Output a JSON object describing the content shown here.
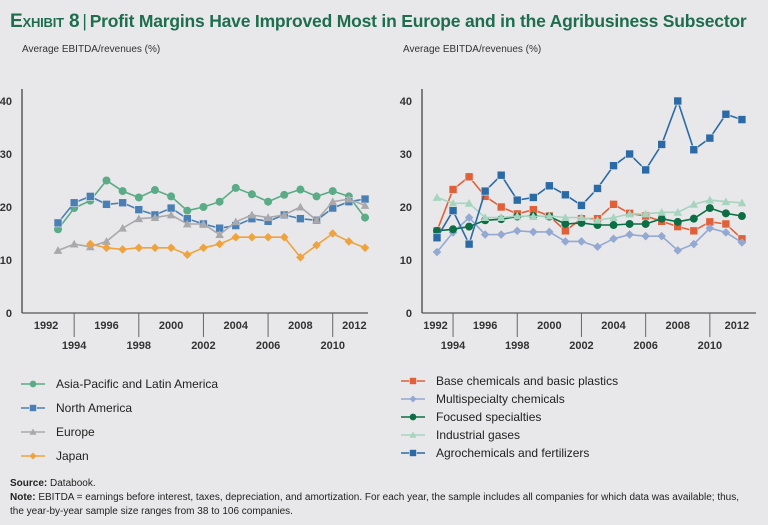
{
  "title": {
    "exhibit": "Exhibit 8",
    "separator": "|",
    "text": "Profit Margins Have Improved Most in Europe and in the Agribusiness Subsector"
  },
  "chart_data": [
    {
      "type": "line",
      "title": "",
      "ylabel": "Average EBITDA/revenues (%)",
      "xlabel": "",
      "ylim": [
        0,
        40
      ],
      "yticks": [
        "0",
        "10",
        "20",
        "30",
        "40"
      ],
      "x": [
        1993,
        1994,
        1995,
        1996,
        1997,
        1998,
        1999,
        2000,
        2001,
        2002,
        2003,
        2004,
        2005,
        2006,
        2007,
        2008,
        2009,
        2010,
        2011,
        2012
      ],
      "xtick_labels_top": [
        "1992",
        "1996",
        "2000",
        "2004",
        "2008",
        "2012"
      ],
      "xtick_labels_bottom": [
        "1994",
        "1998",
        "2002",
        "2006",
        "2010"
      ],
      "legend_position": "below",
      "series": [
        {
          "name": "Asia-Pacific and Latin America",
          "color": "#5aab86",
          "marker": "circle",
          "values": [
            15.8,
            19.8,
            21.2,
            25,
            23,
            21.8,
            23.2,
            22,
            19.3,
            20,
            21,
            23.6,
            22.4,
            21,
            22.3,
            23.3,
            22,
            23,
            22,
            18
          ]
        },
        {
          "name": "North America",
          "color": "#4a7fb5",
          "marker": "square",
          "values": [
            17,
            20.8,
            22,
            20.5,
            20.8,
            19.5,
            18.5,
            19.8,
            17.8,
            16.8,
            16,
            16.5,
            17.8,
            17.3,
            18.5,
            17.8,
            17.5,
            19.8,
            21,
            21.5
          ]
        },
        {
          "name": "Europe",
          "color": "#a9a9ab",
          "marker": "triangle",
          "values": [
            11.8,
            13,
            12.5,
            13.5,
            16,
            17.8,
            18,
            18.5,
            16.8,
            16.8,
            14.8,
            17.2,
            18.5,
            18,
            18.5,
            20,
            17.5,
            21,
            21.5,
            20.3
          ]
        },
        {
          "name": "Japan",
          "color": "#f0a23c",
          "marker": "diamond",
          "values": [
            null,
            null,
            13,
            12.3,
            12,
            12.3,
            12.3,
            12.3,
            11,
            12.3,
            13,
            14.3,
            14.3,
            14.3,
            14.3,
            10.5,
            12.8,
            15,
            13.5,
            12.3
          ]
        }
      ]
    },
    {
      "type": "line",
      "title": "",
      "ylabel": "Average EBITDA/revenues (%)",
      "xlabel": "",
      "ylim": [
        0,
        40
      ],
      "yticks": [
        "0",
        "10",
        "20",
        "30",
        "40"
      ],
      "x": [
        1993,
        1994,
        1995,
        1996,
        1997,
        1998,
        1999,
        2000,
        2001,
        2002,
        2003,
        2004,
        2005,
        2006,
        2007,
        2008,
        2009,
        2010,
        2011,
        2012
      ],
      "xtick_labels_top": [
        "1992",
        "1996",
        "2000",
        "2004",
        "2008",
        "2012"
      ],
      "xtick_labels_bottom": [
        "1994",
        "1998",
        "2002",
        "2006",
        "2010"
      ],
      "legend_position": "below",
      "series": [
        {
          "name": "Base chemicals and basic plastics",
          "color": "#e0603a",
          "marker": "square",
          "values": [
            15.5,
            23.3,
            25.7,
            22,
            20,
            18.7,
            19.5,
            18.3,
            15.5,
            17.8,
            17.8,
            20.5,
            18.8,
            18.3,
            17.3,
            16.3,
            15.5,
            17.2,
            16.8,
            14
          ]
        },
        {
          "name": "Multispecialty chemicals",
          "color": "#93a9d2",
          "marker": "diamond",
          "values": [
            11.5,
            15.2,
            18,
            14.8,
            14.8,
            15.5,
            15.3,
            15.3,
            13.5,
            13.5,
            12.5,
            14,
            14.8,
            14.5,
            14.5,
            11.8,
            13,
            16,
            15.2,
            13.3
          ]
        },
        {
          "name": "Focused specialties",
          "color": "#0d6e45",
          "marker": "circle",
          "values": [
            15.5,
            15.8,
            16.3,
            17.5,
            17.7,
            18.2,
            18.3,
            18.2,
            16.8,
            17,
            16.6,
            16.6,
            16.8,
            16.8,
            17.8,
            17.2,
            17.8,
            19.8,
            18.8,
            18.3
          ]
        },
        {
          "name": "Industrial gases",
          "color": "#a6d4bf",
          "marker": "triangle",
          "values": [
            21.8,
            20.7,
            20.7,
            18,
            18,
            18.3,
            18.2,
            18.3,
            18,
            18,
            17.5,
            18,
            18.7,
            18.7,
            19,
            19,
            20.5,
            21.3,
            21,
            20.8
          ]
        },
        {
          "name": "Agrochemicals and fertilizers",
          "color": "#2b6aa5",
          "marker": "square",
          "values": [
            14.2,
            19.3,
            13,
            23,
            26,
            21.3,
            21.8,
            24,
            22.3,
            20.3,
            23.5,
            27.8,
            30,
            27,
            31.8,
            40,
            30.8,
            33,
            37.5,
            36.5
          ]
        }
      ]
    }
  ],
  "footnote": {
    "source_label": "Source:",
    "source_text": " Databook.",
    "note_label": "Note:",
    "note_text": " EBITDA = earnings before interest, taxes, depreciation, and amortization. For each year, the sample includes all companies for which data was available; thus, the year-by-year sample size ranges from 38 to 106 companies."
  }
}
